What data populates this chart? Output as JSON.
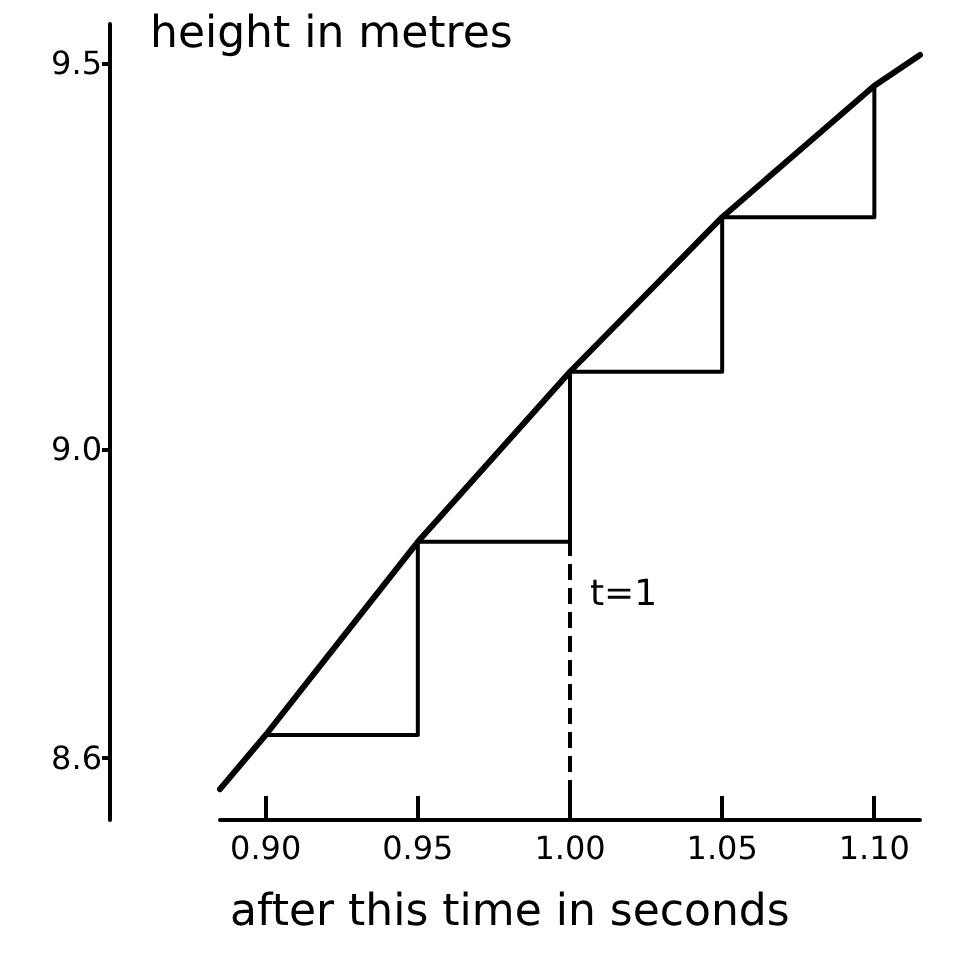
{
  "chart_data": {
    "type": "line",
    "ylabel": "height in metres",
    "xlabel": "after this time in seconds",
    "xlim": [
      0.885,
      1.115
    ],
    "xticks": [
      {
        "value": 0.9,
        "label": "0.90"
      },
      {
        "value": 0.95,
        "label": "0.95"
      },
      {
        "value": 1.0,
        "label": "1.00"
      },
      {
        "value": 1.05,
        "label": "1.05"
      },
      {
        "value": 1.1,
        "label": "1.10"
      }
    ],
    "ylim": [
      8.52,
      9.55
    ],
    "yticks": [
      8.6,
      {
        "value": 9.0,
        "label": "9.0"
      },
      9.5
    ],
    "series": [
      {
        "color": "#000000",
        "x": [
          0.885,
          0.9,
          0.925,
          0.95,
          0.975,
          1.0,
          1.025,
          1.05,
          1.075,
          1.1,
          1.115
        ],
        "values": [
          8.56,
          8.63,
          8.755,
          8.88,
          8.99,
          9.1,
          9.2,
          9.3,
          9.385,
          9.47,
          9.51
        ]
      },
      {
        "type": "step",
        "color": "#000000",
        "x": [
          0.9,
          0.95,
          1.0,
          1.05,
          1.1
        ],
        "values": [
          8.63,
          8.88,
          9.1,
          9.3,
          9.47
        ]
      }
    ],
    "ref_lines": [
      {
        "axis": "x",
        "value": 1.0,
        "label": "t=1",
        "line_style": "dashed"
      }
    ],
    "grid": false,
    "marker": "none"
  }
}
